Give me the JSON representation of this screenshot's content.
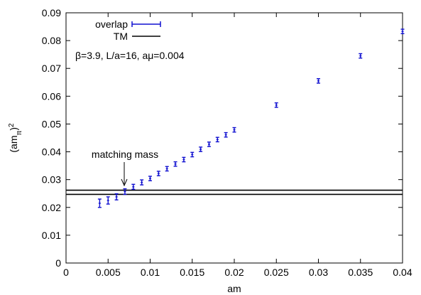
{
  "chart_data": {
    "type": "scatter",
    "xlabel": "am",
    "ylabel_base": "(am",
    "ylabel_sub": "π",
    "ylabel_close": ")",
    "ylabel_sup": "2",
    "xlim": [
      0,
      0.04
    ],
    "ylim": [
      0,
      0.09
    ],
    "xticks": [
      {
        "v": 0,
        "label": "0"
      },
      {
        "v": 0.005,
        "label": "0.005"
      },
      {
        "v": 0.01,
        "label": "0.01"
      },
      {
        "v": 0.015,
        "label": "0.015"
      },
      {
        "v": 0.02,
        "label": "0.02"
      },
      {
        "v": 0.025,
        "label": "0.025"
      },
      {
        "v": 0.03,
        "label": "0.03"
      },
      {
        "v": 0.035,
        "label": "0.035"
      },
      {
        "v": 0.04,
        "label": "0.04"
      }
    ],
    "yticks": [
      {
        "v": 0,
        "label": "0"
      },
      {
        "v": 0.01,
        "label": "0.01"
      },
      {
        "v": 0.02,
        "label": "0.02"
      },
      {
        "v": 0.03,
        "label": "0.03"
      },
      {
        "v": 0.04,
        "label": "0.04"
      },
      {
        "v": 0.05,
        "label": "0.05"
      },
      {
        "v": 0.06,
        "label": "0.06"
      },
      {
        "v": 0.07,
        "label": "0.07"
      },
      {
        "v": 0.08,
        "label": "0.08"
      },
      {
        "v": 0.09,
        "label": "0.09"
      }
    ],
    "grid": false,
    "legend_position": "top-left",
    "series": [
      {
        "name": "overlap",
        "kind": "errorbar-points",
        "color": "#1010d0",
        "points": [
          {
            "x": 0.004,
            "y": 0.0215,
            "err": 0.0015
          },
          {
            "x": 0.005,
            "y": 0.0225,
            "err": 0.0013
          },
          {
            "x": 0.006,
            "y": 0.0238,
            "err": 0.0011
          },
          {
            "x": 0.007,
            "y": 0.0257,
            "err": 0.001
          },
          {
            "x": 0.008,
            "y": 0.0274,
            "err": 0.0009
          },
          {
            "x": 0.009,
            "y": 0.029,
            "err": 0.0009
          },
          {
            "x": 0.01,
            "y": 0.0304,
            "err": 0.0008
          },
          {
            "x": 0.011,
            "y": 0.0322,
            "err": 0.0008
          },
          {
            "x": 0.012,
            "y": 0.0339,
            "err": 0.0008
          },
          {
            "x": 0.013,
            "y": 0.0356,
            "err": 0.0008
          },
          {
            "x": 0.014,
            "y": 0.0372,
            "err": 0.0008
          },
          {
            "x": 0.015,
            "y": 0.039,
            "err": 0.0008
          },
          {
            "x": 0.016,
            "y": 0.0409,
            "err": 0.0008
          },
          {
            "x": 0.017,
            "y": 0.0427,
            "err": 0.0008
          },
          {
            "x": 0.018,
            "y": 0.0444,
            "err": 0.0008
          },
          {
            "x": 0.019,
            "y": 0.0461,
            "err": 0.0008
          },
          {
            "x": 0.02,
            "y": 0.0479,
            "err": 0.0008
          },
          {
            "x": 0.025,
            "y": 0.0568,
            "err": 0.0008
          },
          {
            "x": 0.03,
            "y": 0.0655,
            "err": 0.0008
          },
          {
            "x": 0.035,
            "y": 0.0745,
            "err": 0.0008
          },
          {
            "x": 0.04,
            "y": 0.0833,
            "err": 0.0008
          }
        ]
      },
      {
        "name": "TM",
        "kind": "horizontal-band",
        "color": "#000000",
        "y_values": [
          0.0247,
          0.0262
        ]
      }
    ],
    "annotations": [
      {
        "text": "β=3.9, L/a=16, aμ=0.004"
      },
      {
        "text": "matching mass",
        "arrow_to": {
          "x": 0.007,
          "y": 0.0266
        }
      }
    ]
  }
}
